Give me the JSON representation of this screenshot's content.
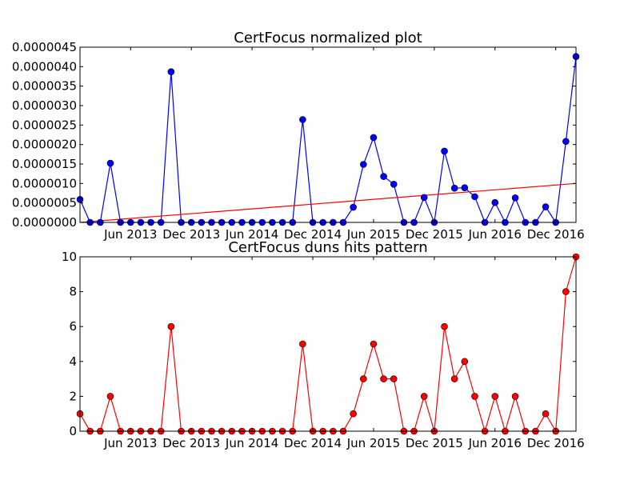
{
  "chart_data": [
    {
      "type": "line",
      "title": "CertFocus normalized plot",
      "xlabel": "",
      "ylabel": "",
      "ylim": [
        0,
        4.5e-06
      ],
      "yticks": [
        "0.0000000",
        "0.0000005",
        "0.0000010",
        "0.0000015",
        "0.0000020",
        "0.0000025",
        "0.0000030",
        "0.0000035",
        "0.0000040",
        "0.0000045"
      ],
      "xlim": [
        "2013-01",
        "2016-12"
      ],
      "xticks": [
        {
          "label": "Jun 2013",
          "x": "2013-06"
        },
        {
          "label": "Dec 2013",
          "x": "2013-12"
        },
        {
          "label": "Jun 2014",
          "x": "2014-06"
        },
        {
          "label": "Dec 2014",
          "x": "2014-12"
        },
        {
          "label": "Jun 2015",
          "x": "2015-06"
        },
        {
          "label": "Dec 2015",
          "x": "2015-12"
        },
        {
          "label": "Jun 2016",
          "x": "2016-06"
        },
        {
          "label": "Dec 2016",
          "x": "2016-12"
        }
      ],
      "grid": false,
      "series": [
        {
          "color": "#0000ff",
          "marker": "circle",
          "x": [
            "2013-01",
            "2013-02",
            "2013-03",
            "2013-04",
            "2013-05",
            "2013-06",
            "2013-07",
            "2013-08",
            "2013-09",
            "2013-10",
            "2013-11",
            "2013-12",
            "2014-01",
            "2014-02",
            "2014-03",
            "2014-04",
            "2014-05",
            "2014-06",
            "2014-07",
            "2014-08",
            "2014-09",
            "2014-10",
            "2014-11",
            "2014-12",
            "2015-01",
            "2015-02",
            "2015-03",
            "2015-04",
            "2015-05",
            "2015-06",
            "2015-07",
            "2015-08",
            "2015-09",
            "2015-10",
            "2015-11",
            "2015-12",
            "2016-01",
            "2016-02",
            "2016-03",
            "2016-04",
            "2016-05",
            "2016-06",
            "2016-07",
            "2016-08",
            "2016-09",
            "2016-10",
            "2016-11",
            "2016-12",
            "2017-01",
            "2017-02"
          ],
          "values": [
            5.9e-07,
            0,
            0,
            1.52e-06,
            0,
            0,
            0,
            0,
            0,
            3.87e-06,
            0,
            0,
            0,
            0,
            0,
            0,
            0,
            0,
            0,
            0,
            0,
            0,
            2.64e-06,
            0,
            0,
            0,
            0,
            3.9e-07,
            1.49e-06,
            2.18e-06,
            1.18e-06,
            9.8e-07,
            0,
            0,
            6.4e-07,
            0,
            1.83e-06,
            8.8e-07,
            8.9e-07,
            6.6e-07,
            0,
            5.1e-07,
            0,
            6.3e-07,
            0,
            0,
            4e-07,
            0,
            2.08e-06,
            4.26e-06
          ]
        },
        {
          "color": "#ff0000",
          "marker": "none",
          "x": [
            "2013-01",
            "2017-02"
          ],
          "values": [
            0,
            1e-06
          ]
        }
      ]
    },
    {
      "type": "line",
      "title": "CertFocus duns hits pattern",
      "xlabel": "",
      "ylabel": "",
      "ylim": [
        0,
        10
      ],
      "yticks": [
        "0",
        "2",
        "4",
        "6",
        "8",
        "10"
      ],
      "xlim": [
        "2013-01",
        "2016-12"
      ],
      "xticks": [
        {
          "label": "Jun 2013",
          "x": "2013-06"
        },
        {
          "label": "Dec 2013",
          "x": "2013-12"
        },
        {
          "label": "Jun 2014",
          "x": "2014-06"
        },
        {
          "label": "Dec 2014",
          "x": "2014-12"
        },
        {
          "label": "Jun 2015",
          "x": "2015-06"
        },
        {
          "label": "Dec 2015",
          "x": "2015-12"
        },
        {
          "label": "Jun 2016",
          "x": "2016-06"
        },
        {
          "label": "Dec 2016",
          "x": "2016-12"
        }
      ],
      "grid": false,
      "series": [
        {
          "color": "#ff0000",
          "marker": "circle",
          "x": [
            "2013-01",
            "2013-02",
            "2013-03",
            "2013-04",
            "2013-05",
            "2013-06",
            "2013-07",
            "2013-08",
            "2013-09",
            "2013-10",
            "2013-11",
            "2013-12",
            "2014-01",
            "2014-02",
            "2014-03",
            "2014-04",
            "2014-05",
            "2014-06",
            "2014-07",
            "2014-08",
            "2014-09",
            "2014-10",
            "2014-11",
            "2014-12",
            "2015-01",
            "2015-02",
            "2015-03",
            "2015-04",
            "2015-05",
            "2015-06",
            "2015-07",
            "2015-08",
            "2015-09",
            "2015-10",
            "2015-11",
            "2015-12",
            "2016-01",
            "2016-02",
            "2016-03",
            "2016-04",
            "2016-05",
            "2016-06",
            "2016-07",
            "2016-08",
            "2016-09",
            "2016-10",
            "2016-11",
            "2016-12",
            "2017-01",
            "2017-02"
          ],
          "values": [
            1,
            0,
            0,
            2,
            0,
            0,
            0,
            0,
            0,
            6,
            0,
            0,
            0,
            0,
            0,
            0,
            0,
            0,
            0,
            0,
            0,
            0,
            5,
            0,
            0,
            0,
            0,
            1,
            3,
            5,
            3,
            3,
            0,
            0,
            2,
            0,
            6,
            3,
            4,
            2,
            0,
            2,
            0,
            2,
            0,
            0,
            1,
            0,
            8,
            10
          ]
        }
      ]
    }
  ]
}
